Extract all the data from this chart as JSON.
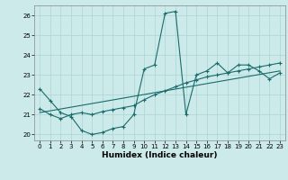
{
  "xlabel": "Humidex (Indice chaleur)",
  "bg_color": "#cceaea",
  "grid_color": "#aad4d4",
  "line_color": "#1a6b6b",
  "xlim": [
    -0.5,
    23.5
  ],
  "ylim": [
    19.7,
    26.5
  ],
  "yticks": [
    20,
    21,
    22,
    23,
    24,
    25,
    26
  ],
  "xticks": [
    0,
    1,
    2,
    3,
    4,
    5,
    6,
    7,
    8,
    9,
    10,
    11,
    12,
    13,
    14,
    15,
    16,
    17,
    18,
    19,
    20,
    21,
    22,
    23
  ],
  "line1_x": [
    0,
    1,
    2,
    3,
    4,
    5,
    6,
    7,
    8,
    9,
    10,
    11,
    12,
    13,
    14,
    15,
    16,
    17,
    18,
    19,
    20,
    21,
    22,
    23
  ],
  "line1_y": [
    22.3,
    21.7,
    21.1,
    20.9,
    20.2,
    20.0,
    20.1,
    20.3,
    20.4,
    21.0,
    23.3,
    23.5,
    26.1,
    26.2,
    21.0,
    23.0,
    23.2,
    23.6,
    23.1,
    23.5,
    23.5,
    23.2,
    22.8,
    23.1
  ],
  "line2_x": [
    0,
    1,
    2,
    3,
    4,
    5,
    6,
    7,
    8,
    9,
    10,
    11,
    12,
    13,
    14,
    15,
    16,
    17,
    18,
    19,
    20,
    21,
    22,
    23
  ],
  "line2_y": [
    21.3,
    21.0,
    20.8,
    21.0,
    21.1,
    21.0,
    21.15,
    21.25,
    21.35,
    21.45,
    21.75,
    22.0,
    22.2,
    22.4,
    22.6,
    22.75,
    22.9,
    23.0,
    23.1,
    23.2,
    23.3,
    23.4,
    23.5,
    23.6
  ],
  "line3_x": [
    0,
    23
  ],
  "line3_y": [
    21.1,
    23.2
  ]
}
